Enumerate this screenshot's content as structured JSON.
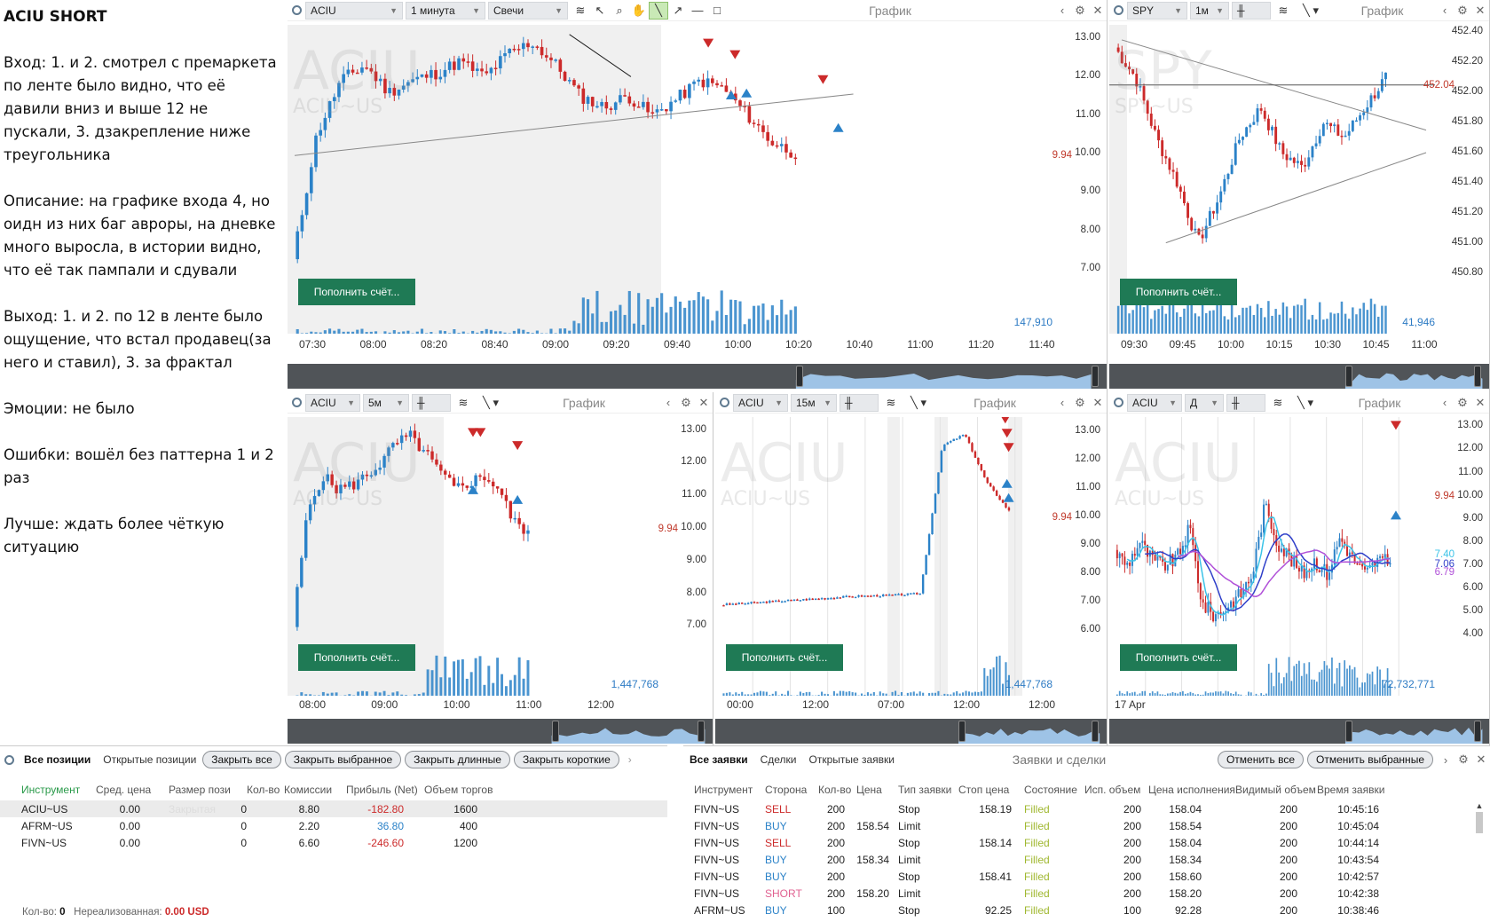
{
  "notes": {
    "title": "ACIU SHORT",
    "paragraphs": [
      "Вход: 1. и 2. смотрел с премаркета по ленте было видно, что её давили вниз и выше 12 не пускали, 3. дзакрепление ниже треугольника",
      "Описание: на графике входа 4, но оидн из них баг авроры, на дневке много выросла, в истории видно, что её так пампали и сдували",
      "Выход: 1. и 2. по 12 в ленте было ощущение, что встал продавец(за него и ставил), 3. за фрактал",
      "Эмоции: не было",
      "Ошибки: вошёл без паттерна 1 и 2 раз",
      "Лучше: ждать более чёткую ситуацию"
    ]
  },
  "colors": {
    "up": "#2b82c8",
    "down": "#cc2a2a",
    "fund": "#1f7a55"
  },
  "fund_label": "Пополнить счёт...",
  "chart_title": "График",
  "charts": [
    {
      "id": "aciu_1m",
      "symbol": "ACIU",
      "timeframe": "1 минута",
      "style": "Свечи",
      "watermark": "ACIU",
      "watermark_sub": "ACIU~US",
      "price_last": "9.94",
      "volume_last": "147,910",
      "y_ticks": [
        "13.00",
        "12.00",
        "11.00",
        "10.00",
        "9.00",
        "8.00",
        "7.00"
      ],
      "ylim": [
        6.7,
        13.35
      ],
      "x_ticks": [
        "07:30",
        "08:00",
        "08:20",
        "08:40",
        "09:00",
        "09:20",
        "09:40",
        "10:00",
        "10:20",
        "10:40",
        "11:00",
        "11:20",
        "11:40"
      ]
    },
    {
      "id": "spy_1m",
      "symbol": "SPY",
      "timeframe": "1м",
      "watermark": "SPY",
      "watermark_sub": "SPY~US",
      "price_last": "452.04",
      "volume_last": "41,946",
      "y_ticks": [
        "452.40",
        "452.20",
        "452.00",
        "451.80",
        "451.60",
        "451.40",
        "451.20",
        "451.00",
        "450.80"
      ],
      "ylim": [
        450.75,
        452.45
      ],
      "x_ticks": [
        "09:30",
        "09:45",
        "10:00",
        "10:15",
        "10:30",
        "10:45",
        "11:00"
      ]
    },
    {
      "id": "aciu_5m",
      "symbol": "ACIU",
      "timeframe": "5м",
      "watermark": "ACIU",
      "watermark_sub": "ACIU~US",
      "price_last": "9.94",
      "volume_last": "1,447,768",
      "y_ticks": [
        "13.00",
        "12.00",
        "11.00",
        "10.00",
        "9.00",
        "8.00",
        "7.00"
      ],
      "ylim": [
        6.6,
        13.4
      ],
      "x_ticks": [
        "08:00",
        "09:00",
        "10:00",
        "11:00",
        "12:00"
      ]
    },
    {
      "id": "aciu_15m",
      "symbol": "ACIU",
      "timeframe": "15м",
      "watermark": "ACIU",
      "watermark_sub": "ACIU~US",
      "price_last": "9.94",
      "volume_last": "1,447,768",
      "y_ticks": [
        "13.00",
        "12.00",
        "11.00",
        "10.00",
        "9.00",
        "8.00",
        "7.00",
        "6.00"
      ],
      "ylim": [
        5.7,
        13.5
      ],
      "x_ticks": [
        "00:00",
        "12:00",
        "07:00",
        "12:00",
        "12:00"
      ]
    },
    {
      "id": "aciu_d",
      "symbol": "ACIU",
      "timeframe": "Д",
      "watermark": "ACIU",
      "watermark_sub": "ACIU~US",
      "price_last": "9.94",
      "volume_last": "72,732,771",
      "y_ticks": [
        "13.00",
        "12.00",
        "11.00",
        "10.00",
        "9.00",
        "8.00",
        "7.00",
        "6.00",
        "5.00",
        "4.00"
      ],
      "ylim": [
        3.8,
        13.4
      ],
      "ma_labels": [
        "7.40",
        "7.06",
        "6.79"
      ],
      "x_ticks": [
        "17 Apr"
      ]
    }
  ],
  "positions": {
    "tabs": [
      "Все позиции",
      "Открытые позиции"
    ],
    "buttons": [
      "Закрыть все",
      "Закрыть выбранное",
      "Закрыть длинные",
      "Закрыть короткие"
    ],
    "columns": [
      "Инструмент",
      "Сред. цена",
      "Размер пози",
      "Кол-во",
      "Комиссии",
      "Прибыль (Net)",
      "Объем торгов"
    ],
    "rows": [
      {
        "instrument": "ACIU~US",
        "avg": "0.00",
        "size": "Закрытая",
        "qty": "0",
        "fee": "8.80",
        "pnl": "-182.80",
        "vol": "1600",
        "pnl_sign": "neg"
      },
      {
        "instrument": "AFRM~US",
        "avg": "0.00",
        "size": "",
        "qty": "0",
        "fee": "2.20",
        "pnl": "36.80",
        "vol": "400",
        "pnl_sign": "pos"
      },
      {
        "instrument": "FIVN~US",
        "avg": "0.00",
        "size": "",
        "qty": "0",
        "fee": "6.60",
        "pnl": "-246.60",
        "vol": "1200",
        "pnl_sign": "neg"
      }
    ],
    "footer_qty_label": "Кол-во:",
    "footer_qty": "0",
    "footer_unreal_label": "Нереализованная:",
    "footer_unreal": "0.00 USD"
  },
  "orders": {
    "tabs": [
      "Все заявки",
      "Сделки",
      "Открытые заявки"
    ],
    "title": "Заявки и сделки",
    "buttons": [
      "Отменить все",
      "Отменить выбранные"
    ],
    "columns": [
      "Инструмент",
      "Сторона",
      "Кол-во",
      "Цена",
      "Тип заявки",
      "Стоп цена",
      "Состояние",
      "Исп. объем",
      "Цена исполнения",
      "Видимый объем",
      "Время заявки"
    ],
    "rows": [
      {
        "inst": "FIVN~US",
        "side": "SELL",
        "qty": "200",
        "price": "",
        "type": "Stop",
        "stop": "158.19",
        "state": "Filled",
        "filled": "200",
        "exec": "158.04",
        "visible": "200",
        "time": "10:45:16"
      },
      {
        "inst": "FIVN~US",
        "side": "BUY",
        "qty": "200",
        "price": "158.54",
        "type": "Limit",
        "stop": "",
        "state": "Filled",
        "filled": "200",
        "exec": "158.54",
        "visible": "200",
        "time": "10:45:04"
      },
      {
        "inst": "FIVN~US",
        "side": "SELL",
        "qty": "200",
        "price": "",
        "type": "Stop",
        "stop": "158.14",
        "state": "Filled",
        "filled": "200",
        "exec": "158.04",
        "visible": "200",
        "time": "10:44:14"
      },
      {
        "inst": "FIVN~US",
        "side": "BUY",
        "qty": "200",
        "price": "158.34",
        "type": "Limit",
        "stop": "",
        "state": "Filled",
        "filled": "200",
        "exec": "158.34",
        "visible": "200",
        "time": "10:43:54"
      },
      {
        "inst": "FIVN~US",
        "side": "BUY",
        "qty": "200",
        "price": "",
        "type": "Stop",
        "stop": "158.41",
        "state": "Filled",
        "filled": "200",
        "exec": "158.60",
        "visible": "200",
        "time": "10:42:57"
      },
      {
        "inst": "FIVN~US",
        "side": "SHORT",
        "qty": "200",
        "price": "158.20",
        "type": "Limit",
        "stop": "",
        "state": "Filled",
        "filled": "200",
        "exec": "158.20",
        "visible": "200",
        "time": "10:42:38"
      },
      {
        "inst": "AFRM~US",
        "side": "BUY",
        "qty": "100",
        "price": "",
        "type": "Stop",
        "stop": "92.25",
        "state": "Filled",
        "filled": "100",
        "exec": "92.28",
        "visible": "200",
        "time": "10:38:46"
      }
    ]
  }
}
